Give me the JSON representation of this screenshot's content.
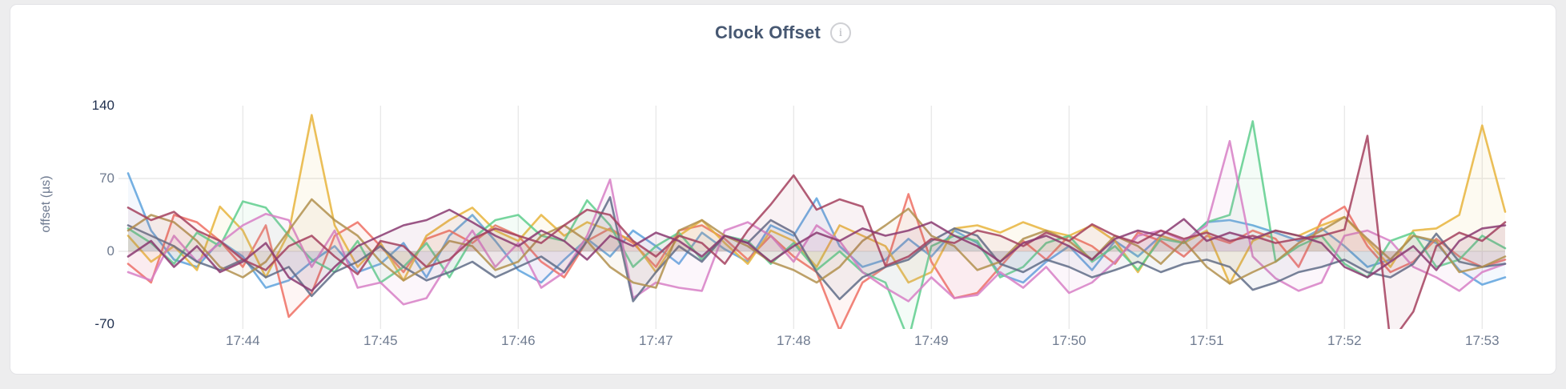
{
  "page": {
    "background_color": "#ededee",
    "card_background": "#ffffff",
    "card_border_color": "#e3e3e6"
  },
  "header": {
    "title": "Clock Offset",
    "info_icon_glyph": "i",
    "title_color": "#475872"
  },
  "chart_data": {
    "type": "line",
    "title": "Clock Offset",
    "xlabel": "",
    "ylabel": "offset (µs)",
    "grid": true,
    "grid_color": "#e9e9e9",
    "legend": "none",
    "axis_text_color": "#6f7b90",
    "axis_extreme_text_color": "#20304f",
    "x_axis": {
      "start_time": "17:43:10",
      "sample_interval_seconds": 10,
      "num_samples": 61,
      "tick_sample_indices": [
        5,
        11,
        17,
        23,
        29,
        35,
        41,
        47,
        53,
        59
      ],
      "tick_labels": [
        "17:44",
        "17:45",
        "17:46",
        "17:47",
        "17:48",
        "17:49",
        "17:50",
        "17:51",
        "17:52",
        "17:53"
      ]
    },
    "y_axis": {
      "ticks": [
        140,
        70,
        0,
        -70
      ],
      "tick_labels": [
        "140",
        "70",
        "0",
        "-70"
      ],
      "unit": "µs",
      "display_range": [
        -75,
        145
      ],
      "gridline_values": [
        70,
        0
      ]
    },
    "series": [
      {
        "name": "series-1",
        "color": "#5DA2DD",
        "values": [
          75,
          20,
          -8,
          -15,
          10,
          -5,
          -35,
          -28,
          -10,
          5,
          -20,
          -12,
          8,
          -25,
          15,
          35,
          10,
          -18,
          -30,
          -8,
          12,
          -5,
          20,
          5,
          -12,
          18,
          2,
          -10,
          25,
          15,
          51,
          5,
          -15,
          -8,
          12,
          -5,
          20,
          8,
          -22,
          -30,
          -10,
          5,
          -18,
          10,
          -5,
          15,
          8,
          28,
          30,
          25,
          18,
          10,
          22,
          5,
          -15,
          -8,
          15,
          8,
          -18,
          -32,
          -25
        ]
      },
      {
        "name": "series-2",
        "color": "#EE6F63",
        "values": [
          -12,
          -30,
          35,
          28,
          10,
          -15,
          25,
          -63,
          -40,
          15,
          28,
          5,
          -20,
          12,
          20,
          8,
          25,
          15,
          -10,
          -25,
          10,
          22,
          8,
          -15,
          20,
          25,
          12,
          -8,
          15,
          -5,
          -20,
          -76,
          -30,
          -15,
          55,
          -10,
          -45,
          -40,
          -15,
          10,
          -8,
          15,
          5,
          -12,
          18,
          10,
          -5,
          15,
          8,
          20,
          12,
          -15,
          30,
          43,
          5,
          -20,
          -10,
          12,
          -5,
          -15,
          -8
        ]
      },
      {
        "name": "series-3",
        "color": "#E8B43C",
        "values": [
          15,
          -10,
          5,
          -18,
          43,
          20,
          -25,
          18,
          131,
          25,
          -15,
          8,
          -28,
          15,
          30,
          42,
          20,
          10,
          35,
          15,
          28,
          20,
          10,
          -20,
          15,
          30,
          8,
          -12,
          20,
          10,
          -15,
          25,
          15,
          5,
          -30,
          -20,
          22,
          25,
          18,
          28,
          20,
          15,
          25,
          10,
          -20,
          15,
          8,
          20,
          -31,
          10,
          20,
          15,
          25,
          33,
          10,
          -15,
          20,
          22,
          35,
          121,
          38
        ]
      },
      {
        "name": "series-4",
        "color": "#5ECE8D",
        "values": [
          22,
          8,
          -12,
          18,
          5,
          48,
          42,
          15,
          -8,
          -20,
          10,
          -30,
          -15,
          8,
          -25,
          12,
          30,
          35,
          15,
          10,
          49,
          25,
          -15,
          5,
          18,
          -8,
          15,
          10,
          -12,
          8,
          -18,
          0,
          -20,
          -30,
          -85,
          5,
          15,
          10,
          -25,
          -15,
          8,
          15,
          -10,
          5,
          -18,
          12,
          8,
          28,
          35,
          125,
          -10,
          5,
          15,
          -12,
          -25,
          10,
          18,
          -15,
          -8,
          15,
          3
        ]
      },
      {
        "name": "series-5",
        "color": "#D77FC6",
        "values": [
          -20,
          -28,
          15,
          -10,
          8,
          25,
          36,
          30,
          -15,
          20,
          -35,
          -30,
          -51,
          -45,
          -10,
          20,
          -15,
          8,
          -35,
          -20,
          15,
          69,
          -45,
          -30,
          -35,
          -38,
          20,
          28,
          15,
          -10,
          25,
          10,
          -20,
          -35,
          -48,
          -25,
          -45,
          -42,
          -20,
          -35,
          -15,
          -40,
          -30,
          -10,
          15,
          20,
          10,
          25,
          106,
          -5,
          -26,
          -38,
          -30,
          15,
          20,
          10,
          -15,
          -25,
          -38,
          -20,
          -12
        ]
      },
      {
        "name": "series-6",
        "color": "#5F6C87",
        "values": [
          25,
          15,
          5,
          -10,
          -18,
          -8,
          -25,
          -15,
          -43,
          -20,
          -10,
          5,
          -15,
          -28,
          -20,
          -10,
          -25,
          -15,
          -5,
          -20,
          10,
          52,
          -48,
          -20,
          5,
          -10,
          15,
          8,
          30,
          18,
          -20,
          -46,
          -25,
          -15,
          -8,
          10,
          22,
          15,
          -12,
          -20,
          -8,
          -15,
          -25,
          -18,
          -10,
          -20,
          -12,
          -8,
          -15,
          -37,
          -30,
          -20,
          -15,
          -8,
          -20,
          -25,
          -12,
          17,
          -10,
          -15,
          -12
        ]
      },
      {
        "name": "series-7",
        "color": "#B2914E",
        "values": [
          20,
          35,
          28,
          10,
          -15,
          -25,
          -10,
          20,
          50,
          30,
          15,
          -10,
          -28,
          -15,
          10,
          5,
          -18,
          -10,
          15,
          25,
          10,
          -15,
          -30,
          -35,
          20,
          30,
          15,
          5,
          -10,
          -18,
          -30,
          -15,
          10,
          25,
          41,
          15,
          5,
          -18,
          -10,
          12,
          20,
          10,
          -8,
          15,
          5,
          -12,
          10,
          -15,
          -31,
          -20,
          -10,
          8,
          20,
          33,
          12,
          -8,
          15,
          10,
          -20,
          -15,
          -5
        ]
      },
      {
        "name": "series-8",
        "color": "#A4415E",
        "values": [
          42,
          30,
          38,
          20,
          10,
          -8,
          -18,
          5,
          15,
          -5,
          -22,
          10,
          5,
          -15,
          -8,
          12,
          22,
          15,
          8,
          25,
          40,
          35,
          10,
          -5,
          15,
          8,
          -12,
          20,
          45,
          73,
          40,
          50,
          43,
          -14,
          -5,
          12,
          8,
          20,
          15,
          5,
          18,
          10,
          26,
          15,
          8,
          20,
          12,
          18,
          10,
          15,
          8,
          12,
          15,
          21,
          111,
          -88,
          -58,
          5,
          18,
          10,
          28
        ]
      },
      {
        "name": "series-9",
        "color": "#8A3A71",
        "values": [
          -5,
          10,
          -15,
          5,
          -20,
          -10,
          8,
          -25,
          -38,
          -15,
          5,
          15,
          25,
          30,
          40,
          28,
          15,
          5,
          20,
          10,
          -8,
          15,
          5,
          18,
          10,
          -5,
          15,
          8,
          -10,
          5,
          18,
          10,
          22,
          15,
          20,
          28,
          15,
          5,
          -10,
          8,
          15,
          5,
          -8,
          12,
          20,
          15,
          31,
          10,
          18,
          12,
          20,
          15,
          8,
          -15,
          -25,
          -10,
          5,
          -18,
          10,
          22,
          25
        ]
      }
    ]
  }
}
